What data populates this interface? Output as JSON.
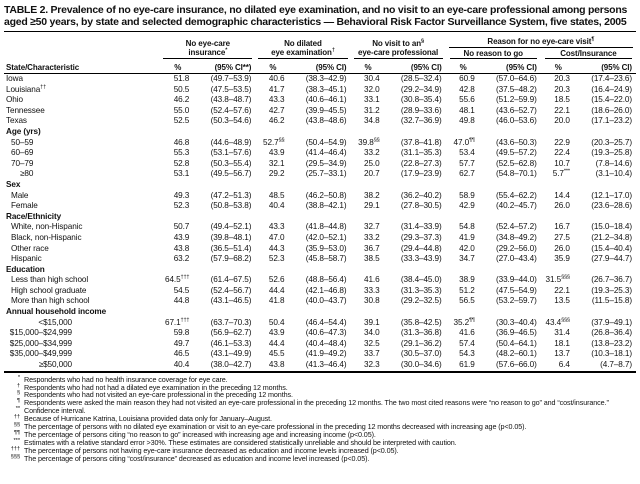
{
  "title": "TABLE 2. Prevalence of no eye-care insurance, no dilated eye examination, and no visit to an eye-care professional among persons aged ≥50 years, by state and selected demographic characteristics — Behavioral Risk Factor Surveillance System, five states, 2005",
  "colors": {
    "background": "#ffffff",
    "text": "#111111",
    "rule": "#000000"
  },
  "table": {
    "stub_header": "State/Characteristic",
    "pct_header": "%",
    "groups": [
      {
        "l1": "No eye-care",
        "l1_sup": "",
        "l2": "insurance",
        "l2_sup": "*",
        "ci": "(95% CI**)"
      },
      {
        "l1": "No dilated",
        "l1_sup": "",
        "l2": "eye examination",
        "l2_sup": "†",
        "ci": "(95% CI)"
      },
      {
        "l1": "No visit to an",
        "l1_sup": "§",
        "l2": "eye-care professional",
        "l2_sup": "",
        "ci": "(95% CI)"
      }
    ],
    "reason_group": {
      "title": "Reason for no eye-care visit",
      "title_sup": "¶",
      "subs": [
        {
          "label": "No reason to go",
          "ci": "(95% CI)"
        },
        {
          "label": "Cost/Insurance",
          "ci": "(95% CI)"
        }
      ]
    },
    "rows": [
      {
        "label": "Iowa",
        "indent": 0,
        "vals": [
          "51.8",
          "(49.7–53.9)",
          "40.6",
          "(38.3–42.9)",
          "30.4",
          "(28.5–32.4)",
          "60.9",
          "(57.0–64.6)",
          "20.3",
          "(17.4–23.6)"
        ]
      },
      {
        "label": "Louisiana",
        "sup": "††",
        "indent": 0,
        "vals": [
          "50.5",
          "(47.5–53.5)",
          "41.7",
          "(38.3–45.1)",
          "32.0",
          "(29.2–34.9)",
          "42.8",
          "(37.5–48.2)",
          "20.3",
          "(16.4–24.9)"
        ]
      },
      {
        "label": "Ohio",
        "indent": 0,
        "vals": [
          "46.2",
          "(43.8–48.7)",
          "43.3",
          "(40.6–46.1)",
          "33.1",
          "(30.8–35.4)",
          "55.6",
          "(51.2–59.9)",
          "18.5",
          "(15.4–22.0)"
        ]
      },
      {
        "label": "Tennessee",
        "indent": 0,
        "vals": [
          "55.0",
          "(52.4–57.6)",
          "42.7",
          "(39.9–45.5)",
          "31.2",
          "(28.9–33.6)",
          "48.1",
          "(43.6–52.7)",
          "22.1",
          "(18.6–26.0)"
        ]
      },
      {
        "label": "Texas",
        "indent": 0,
        "vals": [
          "52.5",
          "(50.3–54.6)",
          "46.2",
          "(43.8–48.6)",
          "34.8",
          "(32.7–36.9)",
          "49.8",
          "(46.0–53.6)",
          "20.0",
          "(17.1–23.2)"
        ]
      },
      {
        "label": "Age (yrs)",
        "section": true
      },
      {
        "label": "50–59",
        "indent": 1,
        "vals": [
          "46.8",
          "(44.6–48.9)",
          "52.7",
          "(50.4–54.9)",
          "39.8",
          "(37.8–41.8)",
          "47.0",
          "(43.6–50.3)",
          "22.9",
          "(20.3–25.7)"
        ],
        "sups": {
          "2": "§§",
          "4": "§§",
          "6": "¶¶"
        }
      },
      {
        "label": "60–69",
        "indent": 1,
        "vals": [
          "55.3",
          "(53.1–57.6)",
          "43.9",
          "(41.4–46.4)",
          "33.2",
          "(31.1–35.3)",
          "53.4",
          "(49.5–57.2)",
          "22.4",
          "(19.3–25.8)"
        ]
      },
      {
        "label": "70–79",
        "indent": 1,
        "vals": [
          "52.8",
          "(50.3–55.4)",
          "32.1",
          "(29.5–34.9)",
          "25.0",
          "(22.8–27.3)",
          "57.7",
          "(52.5–62.8)",
          "10.7",
          "(7.8–14.6)"
        ]
      },
      {
        "label": "≥80",
        "indent": 2,
        "vals": [
          "53.1",
          "(49.5–56.7)",
          "29.2",
          "(25.7–33.1)",
          "20.7",
          "(17.9–23.9)",
          "62.7",
          "(54.8–70.1)",
          "5.7",
          "(3.1–10.4)"
        ],
        "sups": {
          "8": "***"
        }
      },
      {
        "label": "Sex",
        "section": true
      },
      {
        "label": "Male",
        "indent": 1,
        "vals": [
          "49.3",
          "(47.2–51.3)",
          "48.5",
          "(46.2–50.8)",
          "38.2",
          "(36.2–40.2)",
          "58.9",
          "(55.4–62.2)",
          "14.4",
          "(12.1–17.0)"
        ]
      },
      {
        "label": "Female",
        "indent": 1,
        "vals": [
          "52.3",
          "(50.8–53.8)",
          "40.4",
          "(38.8–42.1)",
          "29.1",
          "(27.8–30.5)",
          "42.9",
          "(40.2–45.7)",
          "26.0",
          "(23.6–28.6)"
        ]
      },
      {
        "label": "Race/Ethnicity",
        "section": true
      },
      {
        "label": "White, non-Hispanic",
        "indent": 1,
        "vals": [
          "50.7",
          "(49.4–52.1)",
          "43.3",
          "(41.8–44.8)",
          "32.7",
          "(31.4–33.9)",
          "54.8",
          "(52.4–57.2)",
          "16.7",
          "(15.0–18.4)"
        ]
      },
      {
        "label": "Black, non-Hispanic",
        "indent": 1,
        "vals": [
          "43.9",
          "(39.8–48.1)",
          "47.0",
          "(42.0–52.1)",
          "33.2",
          "(29.3–37.3)",
          "41.9",
          "(34.8–49.2)",
          "27.5",
          "(21.2–34.8)"
        ]
      },
      {
        "label": "Other race",
        "indent": 1,
        "vals": [
          "43.8",
          "(36.5–51.4)",
          "44.3",
          "(35.9–53.0)",
          "36.7",
          "(29.4–44.8)",
          "42.0",
          "(29.2–56.0)",
          "26.0",
          "(15.4–40.4)"
        ]
      },
      {
        "label": "Hispanic",
        "indent": 1,
        "vals": [
          "63.2",
          "(57.9–68.2)",
          "52.3",
          "(45.8–58.7)",
          "38.5",
          "(33.3–43.9)",
          "34.7",
          "(27.0–43.4)",
          "35.9",
          "(27.9–44.7)"
        ]
      },
      {
        "label": "Education",
        "section": true
      },
      {
        "label": "Less than high school",
        "indent": 1,
        "vals": [
          "64.5",
          "(61.4–67.5)",
          "52.6",
          "(48.8–56.4)",
          "41.6",
          "(38.4–45.0)",
          "38.9",
          "(33.9–44.0)",
          "31.5",
          "(26.7–36.7)"
        ],
        "sups": {
          "0": "†††",
          "8": "§§§"
        }
      },
      {
        "label": "High school graduate",
        "indent": 1,
        "vals": [
          "54.5",
          "(52.4–56.7)",
          "44.4",
          "(42.1–46.8)",
          "33.3",
          "(31.3–35.3)",
          "51.2",
          "(47.5–54.9)",
          "22.1",
          "(19.3–25.3)"
        ]
      },
      {
        "label": "More than high school",
        "indent": 1,
        "vals": [
          "44.8",
          "(43.1–46.5)",
          "41.8",
          "(40.0–43.7)",
          "30.8",
          "(29.2–32.5)",
          "56.5",
          "(53.2–59.7)",
          "13.5",
          "(11.5–15.8)"
        ]
      },
      {
        "label": "Annual household income",
        "section": true
      },
      {
        "label": "<$15,000",
        "indent": 0,
        "right": true,
        "vals": [
          "67.1",
          "(63.7–70.3)",
          "50.4",
          "(46.4–54.4)",
          "39.1",
          "(35.8–42.5)",
          "35.2",
          "(30.3–40.4)",
          "43.4",
          "(37.9–49.1)"
        ],
        "sups": {
          "0": "†††",
          "6": "¶¶",
          "8": "§§§"
        }
      },
      {
        "label": "$15,000–$24,999",
        "indent": 0,
        "right": true,
        "vals": [
          "59.8",
          "(56.9–62.7)",
          "43.9",
          "(40.6–47.3)",
          "34.0",
          "(31.3–36.8)",
          "41.6",
          "(36.9–46.5)",
          "31.4",
          "(26.8–36.4)"
        ]
      },
      {
        "label": "$25,000–$34,999",
        "indent": 0,
        "right": true,
        "vals": [
          "49.7",
          "(46.1–53.3)",
          "44.4",
          "(40.4–48.4)",
          "32.5",
          "(29.1–36.2)",
          "57.4",
          "(50.4–64.1)",
          "18.1",
          "(13.8–23.2)"
        ]
      },
      {
        "label": "$35,000–$49,999",
        "indent": 0,
        "right": true,
        "vals": [
          "46.5",
          "(43.1–49.9)",
          "45.5",
          "(41.9–49.2)",
          "33.7",
          "(30.5–37.0)",
          "54.3",
          "(48.2–60.1)",
          "13.7",
          "(10.3–18.1)"
        ]
      },
      {
        "label": "≥$50,000",
        "indent": 0,
        "right": true,
        "vals": [
          "40.4",
          "(38.0–42.7)",
          "43.8",
          "(41.3–46.4)",
          "32.3",
          "(30.0–34.6)",
          "61.9",
          "(57.6–66.0)",
          "6.4",
          "(4.7–8.7)"
        ]
      }
    ]
  },
  "footnotes": [
    {
      "m": "*",
      "t": "Respondents who had no health insurance coverage for eye care."
    },
    {
      "m": "†",
      "t": "Respondents who had not had a dilated eye examination in the preceding 12 months."
    },
    {
      "m": "§",
      "t": "Respondents who had not visited an eye-care professional in the preceding 12 months."
    },
    {
      "m": "¶",
      "t": "Respondents were asked the main reason they had not visited an eye-care professional in the preceding 12 months. The two most cited reasons were “no reason to go” and “cost/insurance.”"
    },
    {
      "m": "**",
      "t": "Confidence interval."
    },
    {
      "m": "††",
      "t": "Because of Hurricane Katrina, Louisiana provided data only for January–August."
    },
    {
      "m": "§§",
      "t": "The percentage of persons with no dilated eye examination or visit to an eye-care professional in the preceding 12 months decreased with increasing age (p<0.05)."
    },
    {
      "m": "¶¶",
      "t": "The percentage of persons citing “no reason to go” increased with increasing age and increasing income (p<0.05)."
    },
    {
      "m": "***",
      "t": "Estimates with a relative standard error >30%. These estimates are considered statistically unreliable and should be interpreted with caution."
    },
    {
      "m": "†††",
      "t": "The percentage of persons not having eye-care insurance decreased as education and income levels increased (p<0.05)."
    },
    {
      "m": "§§§",
      "t": "The percentage of persons citing “cost/insurance” decreased as education and income level increased (p<0.05)."
    }
  ]
}
